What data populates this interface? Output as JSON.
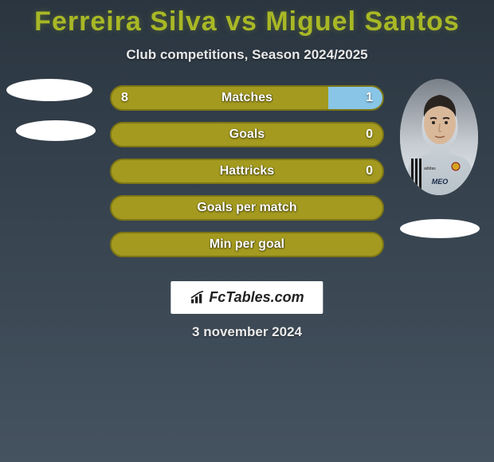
{
  "title": "Ferreira Silva vs Miguel Santos",
  "subtitle": "Club competitions, Season 2024/2025",
  "date": "3 november 2024",
  "watermark": "FcTables.com",
  "colors": {
    "title_color": "#a8b825",
    "dark_olive": "#a39a1f",
    "light_blue": "#89c5e6",
    "border_dark": "#7d7516",
    "bg_top": "#2a3540",
    "bg_bottom": "#455260",
    "text_white": "#e8e8e8"
  },
  "player_left": {
    "has_photo": false
  },
  "player_right": {
    "has_photo": true
  },
  "bars": [
    {
      "label": "Matches",
      "left_value": "8",
      "right_value": "1",
      "left_pct": 80,
      "right_pct": 20,
      "left_color": "#a39a1f",
      "right_color": "#89c5e6",
      "border_color": "#7d7516"
    },
    {
      "label": "Goals",
      "left_value": "",
      "right_value": "0",
      "left_pct": 100,
      "right_pct": 0,
      "left_color": "#a39a1f",
      "right_color": "#89c5e6",
      "border_color": "#7d7516"
    },
    {
      "label": "Hattricks",
      "left_value": "",
      "right_value": "0",
      "left_pct": 100,
      "right_pct": 0,
      "left_color": "#a39a1f",
      "right_color": "#89c5e6",
      "border_color": "#7d7516"
    },
    {
      "label": "Goals per match",
      "left_value": "",
      "right_value": "",
      "left_pct": 100,
      "right_pct": 0,
      "left_color": "#a39a1f",
      "right_color": "#89c5e6",
      "border_color": "#7d7516"
    },
    {
      "label": "Min per goal",
      "left_value": "",
      "right_value": "",
      "left_pct": 100,
      "right_pct": 0,
      "left_color": "#a39a1f",
      "right_color": "#89c5e6",
      "border_color": "#7d7516"
    }
  ]
}
